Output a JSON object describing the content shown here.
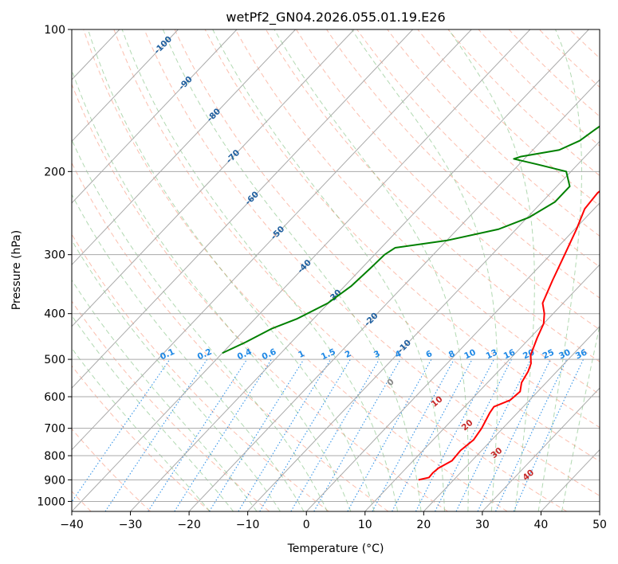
{
  "chart_data": {
    "type": "line",
    "subtype": "skew-t log-p",
    "title": "wetPf2_GN04.2026.055.01.19.E26",
    "xlabel": "Temperature (°C)",
    "ylabel": "Pressure (hPa)",
    "xlim": [
      -40,
      50
    ],
    "ylim": [
      1050,
      100
    ],
    "y_scale": "log",
    "grid": true,
    "x_ticks": [
      -40,
      -30,
      -20,
      -10,
      0,
      10,
      20,
      30,
      40,
      50
    ],
    "x_tick_labels": [
      "−40",
      "−30",
      "−20",
      "−10",
      "0",
      "10",
      "20",
      "30",
      "40",
      "50"
    ],
    "y_ticks": [
      1000,
      900,
      800,
      700,
      600,
      500,
      400,
      300,
      200,
      100
    ],
    "y_tick_labels": [
      "1000",
      "900",
      "800",
      "700",
      "600",
      "500",
      "400",
      "300",
      "200",
      "100"
    ],
    "series": [
      {
        "color": "#ff0000",
        "points": [
          [
            900,
            14.0
          ],
          [
            890,
            15.4
          ],
          [
            870,
            15.3
          ],
          [
            850,
            15.5
          ],
          [
            820,
            16.6
          ],
          [
            780,
            16.4
          ],
          [
            740,
            16.9
          ],
          [
            700,
            16.4
          ],
          [
            650,
            15.3
          ],
          [
            630,
            15.0
          ],
          [
            610,
            16.7
          ],
          [
            585,
            17.0
          ],
          [
            560,
            15.8
          ],
          [
            530,
            15.1
          ],
          [
            510,
            14.3
          ],
          [
            490,
            12.9
          ],
          [
            450,
            11.2
          ],
          [
            420,
            10.0
          ],
          [
            400,
            8.5
          ],
          [
            380,
            6.5
          ],
          [
            340,
            4.5
          ],
          [
            300,
            2.4
          ],
          [
            265,
            0.3
          ],
          [
            240,
            -1.6
          ],
          [
            222,
            -2.0
          ],
          [
            210,
            -1.3
          ],
          [
            200,
            0.4
          ],
          [
            190,
            3.5
          ],
          [
            180,
            4.9
          ],
          [
            165,
            6.5
          ],
          [
            145,
            8.7
          ],
          [
            130,
            9.4
          ],
          [
            120,
            9.3
          ],
          [
            110,
            9.5
          ],
          [
            100,
            10.7
          ]
        ]
      },
      {
        "color": "#008000",
        "points": [
          [
            485,
            -40.0
          ],
          [
            460,
            -37.8
          ],
          [
            430,
            -35.5
          ],
          [
            410,
            -32.8
          ],
          [
            380,
            -30.1
          ],
          [
            350,
            -28.9
          ],
          [
            320,
            -28.5
          ],
          [
            300,
            -28.3
          ],
          [
            290,
            -27.6
          ],
          [
            280,
            -20.0
          ],
          [
            265,
            -13.0
          ],
          [
            250,
            -9.7
          ],
          [
            232,
            -7.8
          ],
          [
            215,
            -7.8
          ],
          [
            200,
            -10.8
          ],
          [
            193,
            -17.0
          ],
          [
            188,
            -21.8
          ],
          [
            186,
            -21.0
          ],
          [
            180,
            -15.5
          ],
          [
            172,
            -13.5
          ],
          [
            163,
            -12.7
          ],
          [
            153,
            -11.6
          ],
          [
            135,
            -7.4
          ],
          [
            120,
            -2.0
          ],
          [
            110,
            0.2
          ],
          [
            100,
            3.0
          ]
        ]
      }
    ],
    "dry_adiabat_labels": [
      "-100",
      "-90",
      "-80",
      "-70",
      "-60",
      "-50",
      "-40",
      "-30",
      "-20",
      "-10"
    ],
    "mixing_ratio_labels": [
      "0.1",
      "0.2",
      "0.4",
      "0.6",
      "1",
      "1.5",
      "2",
      "3",
      "4",
      "6",
      "8",
      "10",
      "13",
      "16",
      "20",
      "25",
      "30",
      "36"
    ],
    "moist_adiabat_labels": [
      "0",
      "10",
      "20",
      "30",
      "40"
    ],
    "colors": {
      "temperature": "#ff0000",
      "dewpoint": "#008000",
      "grid": "#aaaaaa",
      "dry_adiabat": "#fa8060",
      "moist_adiabat": "#55aa55",
      "mixing_ratio": "#1e88e5",
      "dry_label": "#1f5f9f",
      "mixing_label": "#1e88e5",
      "moist_label": "#c62828",
      "zero_label": "#888888"
    }
  }
}
